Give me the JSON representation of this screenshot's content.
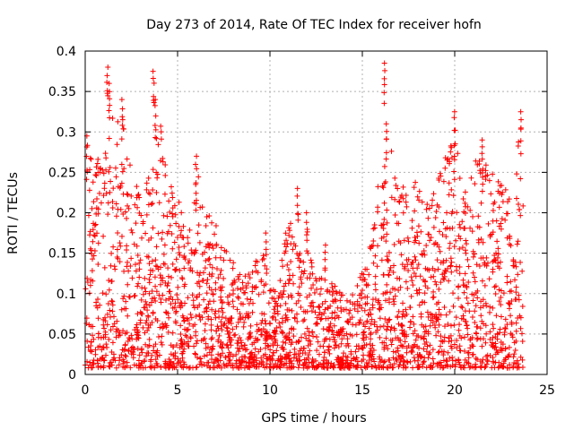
{
  "chart_data": {
    "type": "scatter",
    "title": "Day 273 of 2014, Rate Of TEC Index for receiver hofn",
    "xlabel": "GPS time / hours",
    "ylabel": "ROTI / TECUs",
    "xlim": [
      0,
      25
    ],
    "ylim": [
      0,
      0.4
    ],
    "x_ticks": [
      "0",
      "5",
      "10",
      "15",
      "20",
      "25"
    ],
    "y_ticks": [
      "0",
      "0.05",
      "0.1",
      "0.15",
      "0.2",
      "0.25",
      "0.3",
      "0.35",
      "0.4"
    ],
    "grid": true,
    "marker": "+",
    "color": "#ff0000",
    "envelope": {
      "x": [
        0,
        0.5,
        1,
        1.5,
        2,
        2.5,
        3,
        3.5,
        4,
        4.5,
        5,
        5.5,
        6,
        6.5,
        7,
        7.5,
        8,
        8.5,
        9,
        9.5,
        10,
        10.5,
        11,
        11.5,
        12,
        12.5,
        13,
        13.5,
        14,
        14.5,
        15,
        15.5,
        16,
        16.5,
        17,
        17.5,
        18,
        18.5,
        19,
        19.5,
        20,
        20.5,
        21,
        21.5,
        22,
        22.5,
        23,
        23.5,
        23.7
      ],
      "upper": [
        0.25,
        0.29,
        0.26,
        0.33,
        0.32,
        0.25,
        0.22,
        0.25,
        0.33,
        0.24,
        0.22,
        0.18,
        0.26,
        0.2,
        0.2,
        0.16,
        0.14,
        0.12,
        0.13,
        0.16,
        0.12,
        0.12,
        0.2,
        0.15,
        0.17,
        0.12,
        0.12,
        0.11,
        0.1,
        0.1,
        0.13,
        0.18,
        0.26,
        0.29,
        0.22,
        0.26,
        0.24,
        0.23,
        0.24,
        0.27,
        0.3,
        0.22,
        0.26,
        0.28,
        0.25,
        0.24,
        0.22,
        0.3,
        0.25
      ],
      "lower": [
        0.01,
        0.01,
        0.01,
        0.01,
        0.01,
        0.01,
        0.01,
        0.01,
        0.01,
        0.01,
        0.01,
        0.01,
        0.01,
        0.01,
        0.01,
        0.01,
        0.01,
        0.01,
        0.01,
        0.01,
        0.01,
        0.01,
        0.01,
        0.01,
        0.01,
        0.01,
        0.01,
        0.01,
        0.01,
        0.01,
        0.01,
        0.01,
        0.01,
        0.01,
        0.01,
        0.01,
        0.01,
        0.01,
        0.01,
        0.01,
        0.01,
        0.01,
        0.01,
        0.01,
        0.01,
        0.01,
        0.01,
        0.01,
        0.01
      ]
    },
    "spikes": [
      {
        "x": 1.2,
        "y": 0.38
      },
      {
        "x": 3.7,
        "y": 0.375
      },
      {
        "x": 16.2,
        "y": 0.385
      },
      {
        "x": 1.3,
        "y": 0.36
      },
      {
        "x": 2.0,
        "y": 0.34
      },
      {
        "x": 3.8,
        "y": 0.34
      },
      {
        "x": 0.1,
        "y": 0.295
      },
      {
        "x": 6.0,
        "y": 0.27
      },
      {
        "x": 16.3,
        "y": 0.31
      },
      {
        "x": 20.0,
        "y": 0.325
      },
      {
        "x": 23.6,
        "y": 0.325
      },
      {
        "x": 21.5,
        "y": 0.29
      },
      {
        "x": 11.5,
        "y": 0.23
      },
      {
        "x": 12.0,
        "y": 0.2
      },
      {
        "x": 9.8,
        "y": 0.175
      },
      {
        "x": 13.0,
        "y": 0.16
      }
    ]
  }
}
